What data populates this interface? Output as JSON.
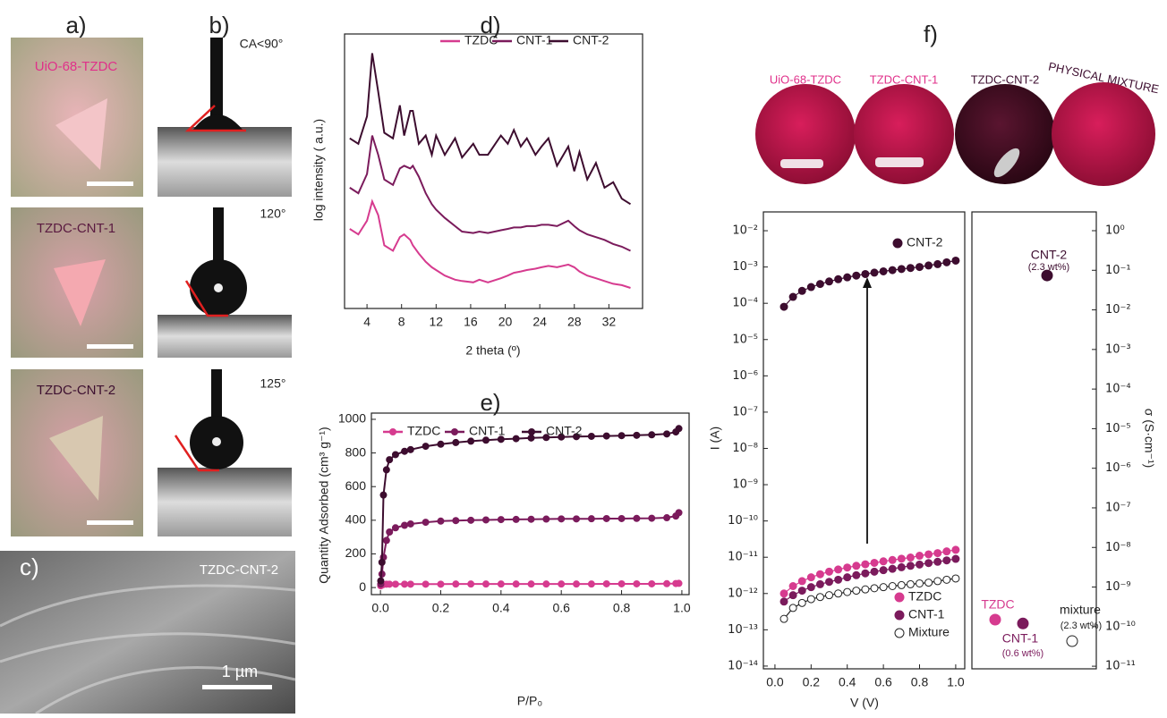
{
  "panels": {
    "a": "a)",
    "b": "b)",
    "c": "c)"
  },
  "photos": [
    "UiO-68-TZDC",
    "TZDC-CNT-1",
    "TZDC-CNT-2"
  ],
  "contact_angles": [
    "CA<90°",
    "120°",
    "125°"
  ],
  "sem": {
    "label": "TZDC-CNT-2",
    "scale": "1 µm"
  },
  "discs": [
    "UiO-68-TZDC",
    "TZDC-CNT-1",
    "TZDC-CNT-2",
    "PHYSICAL MIXTURE"
  ],
  "chart_data": [
    {
      "type": "line",
      "title": "d)",
      "x_label": "2 theta (º)",
      "y_label": "log intensity ( a.u.)",
      "xlim": [
        1.4,
        35.9
      ],
      "xticks": [
        4,
        8,
        12,
        16,
        20,
        24,
        28,
        32
      ],
      "ylim": [
        0,
        10
      ],
      "markers": false,
      "x": [
        2,
        3,
        4,
        4.6,
        5.3,
        6,
        7,
        7.8,
        8.3,
        9,
        9.3,
        10,
        10.8,
        11.5,
        12,
        13,
        14.2,
        15,
        16.3,
        17,
        18,
        19.5,
        20.3,
        21,
        21.8,
        22.5,
        23.5,
        24.2,
        25,
        26,
        27.3,
        28,
        28.6,
        29.5,
        30.5,
        31.5,
        32.5,
        33.5,
        34.5
      ],
      "series": [
        {
          "name": "TZDC",
          "color": "#d63b8f",
          "values": [
            2.9,
            2.7,
            3.2,
            3.9,
            3.4,
            2.3,
            2.1,
            2.6,
            2.7,
            2.5,
            2.3,
            2.0,
            1.7,
            1.5,
            1.4,
            1.2,
            1.05,
            1.0,
            0.95,
            1.05,
            0.95,
            1.1,
            1.2,
            1.3,
            1.35,
            1.4,
            1.45,
            1.5,
            1.55,
            1.5,
            1.6,
            1.5,
            1.35,
            1.2,
            1.1,
            1.0,
            0.9,
            0.85,
            0.75
          ]
        },
        {
          "name": "CNT-1",
          "color": "#7b1b5c",
          "values": [
            4.4,
            4.2,
            4.9,
            6.3,
            5.6,
            4.7,
            4.5,
            5.1,
            5.2,
            5.1,
            5.2,
            4.8,
            4.2,
            3.8,
            3.6,
            3.3,
            3.0,
            2.8,
            2.75,
            2.8,
            2.75,
            2.85,
            2.9,
            2.95,
            2.95,
            3.0,
            3.0,
            3.05,
            3.05,
            3.0,
            3.2,
            3.0,
            2.85,
            2.7,
            2.6,
            2.5,
            2.35,
            2.25,
            2.1
          ]
        },
        {
          "name": "CNT-2",
          "color": "#3d0d2f",
          "values": [
            6.2,
            6.0,
            7.0,
            9.3,
            7.9,
            6.4,
            6.2,
            7.4,
            6.3,
            7.2,
            7.2,
            6.0,
            6.3,
            5.6,
            6.3,
            5.6,
            6.2,
            5.5,
            6.0,
            5.6,
            5.6,
            6.3,
            6.0,
            6.5,
            5.9,
            6.2,
            5.6,
            5.9,
            6.2,
            5.2,
            5.9,
            5.0,
            5.7,
            4.7,
            5.3,
            4.4,
            4.6,
            4.0,
            3.8
          ]
        }
      ]
    },
    {
      "type": "line",
      "title": "e)",
      "x_label": "P/P₀",
      "y_label": "Quantity Adsorbed (cm³ g⁻¹)",
      "xlim": [
        -0.03,
        1.024
      ],
      "xticks": [
        {
          "value": 0,
          "label": "0.0"
        },
        {
          "value": 0.2,
          "label": "0.2"
        },
        {
          "value": 0.4,
          "label": "0.4"
        },
        {
          "value": 0.6,
          "label": "0.6"
        },
        {
          "value": 0.8,
          "label": "0.8"
        },
        {
          "value": 1,
          "label": "1.0"
        }
      ],
      "ylim": [
        -42,
        1037
      ],
      "yticks": [
        0,
        200,
        400,
        600,
        800,
        1000
      ],
      "markers": true,
      "x": [
        0.001,
        0.005,
        0.01,
        0.02,
        0.03,
        0.05,
        0.08,
        0.1,
        0.15,
        0.2,
        0.25,
        0.3,
        0.35,
        0.4,
        0.45,
        0.5,
        0.55,
        0.6,
        0.65,
        0.7,
        0.75,
        0.8,
        0.85,
        0.9,
        0.95,
        0.98,
        0.99
      ],
      "series": [
        {
          "name": "TZDC",
          "color": "#d63b8f",
          "values": [
            10,
            15,
            18,
            20,
            20,
            20,
            20,
            20,
            20,
            20,
            21,
            21,
            21,
            21,
            21,
            21,
            21,
            21,
            21,
            21,
            22,
            22,
            22,
            22,
            23,
            24,
            25
          ]
        },
        {
          "name": "CNT-1",
          "color": "#7b1b5c",
          "values": [
            20,
            80,
            180,
            280,
            330,
            355,
            370,
            378,
            388,
            395,
            398,
            400,
            402,
            404,
            405,
            406,
            407,
            408,
            408,
            409,
            410,
            410,
            411,
            412,
            415,
            425,
            445
          ]
        },
        {
          "name": "CNT-2",
          "color": "#3d0d2f",
          "values": [
            40,
            150,
            550,
            700,
            760,
            790,
            810,
            820,
            840,
            852,
            862,
            870,
            876,
            881,
            885,
            889,
            892,
            895,
            897,
            899,
            901,
            903,
            905,
            908,
            913,
            925,
            945
          ]
        }
      ]
    },
    {
      "type": "line",
      "title": "f)",
      "x_label": "V (V)",
      "y_label": "I (A)",
      "log_y": true,
      "xlim": [
        -0.064,
        1.05
      ],
      "xticks": [
        {
          "value": 0,
          "label": "0.0"
        },
        {
          "value": 0.2,
          "label": "0.2"
        },
        {
          "value": 0.4,
          "label": "0.4"
        },
        {
          "value": 0.6,
          "label": "0.6"
        },
        {
          "value": 0.8,
          "label": "0.8"
        },
        {
          "value": 1,
          "label": "1.0"
        }
      ],
      "ylim": [
        8.4e-15,
        0.033
      ],
      "yticks": [
        {
          "value": 1e-14,
          "label": "10⁻¹⁴"
        },
        {
          "value": 1e-13,
          "label": "10⁻¹³"
        },
        {
          "value": 1e-12,
          "label": "10⁻¹²"
        },
        {
          "value": 1e-11,
          "label": "10⁻¹¹"
        },
        {
          "value": 1e-10,
          "label": "10⁻¹⁰"
        },
        {
          "value": 1e-09,
          "label": "10⁻⁹"
        },
        {
          "value": 1e-08,
          "label": "10⁻⁸"
        },
        {
          "value": 1e-07,
          "label": "10⁻⁷"
        },
        {
          "value": 1e-06,
          "label": "10⁻⁶"
        },
        {
          "value": 1e-05,
          "label": "10⁻⁵"
        },
        {
          "value": 0.0001,
          "label": "10⁻⁴"
        },
        {
          "value": 0.001,
          "label": "10⁻³"
        },
        {
          "value": 0.01,
          "label": "10⁻²"
        }
      ],
      "markers": true,
      "x": [
        0.05,
        0.1,
        0.15,
        0.2,
        0.25,
        0.3,
        0.35,
        0.4,
        0.45,
        0.5,
        0.55,
        0.6,
        0.65,
        0.7,
        0.75,
        0.8,
        0.85,
        0.9,
        0.95,
        1.0
      ],
      "series": [
        {
          "name": "CNT-2",
          "color": "#3d0d2f",
          "values": [
            8e-05,
            0.00015,
            0.00022,
            0.00028,
            0.00034,
            0.0004,
            0.00046,
            0.00052,
            0.00058,
            0.00064,
            0.0007,
            0.00076,
            0.00082,
            0.00088,
            0.00094,
            0.001,
            0.0011,
            0.0012,
            0.00135,
            0.0015
          ]
        },
        {
          "name": "TZDC",
          "color": "#d63b8f",
          "values": [
            1e-12,
            1.6e-12,
            2.2e-12,
            2.8e-12,
            3.4e-12,
            4e-12,
            4.6e-12,
            5.2e-12,
            5.8e-12,
            6.4e-12,
            7e-12,
            7.7e-12,
            8.4e-12,
            9.1e-12,
            9.8e-12,
            1.1e-11,
            1.2e-11,
            1.3e-11,
            1.45e-11,
            1.6e-11
          ]
        },
        {
          "name": "CNT-1",
          "color": "#7b1b5c",
          "values": [
            6e-13,
            9e-13,
            1.2e-12,
            1.5e-12,
            1.8e-12,
            2.1e-12,
            2.4e-12,
            2.8e-12,
            3.2e-12,
            3.6e-12,
            4e-12,
            4.4e-12,
            4.8e-12,
            5.3e-12,
            5.8e-12,
            6.3e-12,
            6.9e-12,
            7.5e-12,
            8.2e-12,
            9e-12
          ]
        },
        {
          "name": "Mixture",
          "color": "#ffffff",
          "marker": "open",
          "values": [
            2e-13,
            4e-13,
            5.5e-13,
            7e-13,
            8e-13,
            9e-13,
            1e-12,
            1.1e-12,
            1.2e-12,
            1.3e-12,
            1.4e-12,
            1.5e-12,
            1.6e-12,
            1.7e-12,
            1.8e-12,
            1.9e-12,
            2e-12,
            2.2e-12,
            2.4e-12,
            2.6e-12
          ]
        }
      ]
    },
    {
      "type": "scatter",
      "y_label": "σ (S·cm⁻¹)",
      "log_y": true,
      "ylim": [
        8.6e-12,
        2.98
      ],
      "yticks": [
        {
          "value": 1,
          "label": "10⁰"
        },
        {
          "value": 0.1,
          "label": "10⁻¹"
        },
        {
          "value": 0.01,
          "label": "10⁻²"
        },
        {
          "value": 0.001,
          "label": "10⁻³"
        },
        {
          "value": 0.0001,
          "label": "10⁻⁴"
        },
        {
          "value": 1e-05,
          "label": "10⁻⁵"
        },
        {
          "value": 1e-06,
          "label": "10⁻⁶"
        },
        {
          "value": 1e-07,
          "label": "10⁻⁷"
        },
        {
          "value": 1e-08,
          "label": "10⁻⁸"
        },
        {
          "value": 1e-09,
          "label": "10⁻⁹"
        },
        {
          "value": 1e-10,
          "label": "10⁻¹⁰"
        },
        {
          "value": 1e-11,
          "label": "10⁻¹¹"
        }
      ],
      "points": [
        {
          "label": "TZDC",
          "value": 1.5e-10,
          "color": "#d63b8f"
        },
        {
          "label": "CNT-1",
          "note": "(0.6 wt%)",
          "value": 1.2e-10,
          "color": "#7b1b5c"
        },
        {
          "label": "CNT-2",
          "note": "(2.3 wt%)",
          "value": 0.074,
          "color": "#3d0d2f"
        },
        {
          "label": "mixture",
          "note": "(2.3 wt%)",
          "value": 4.3e-11,
          "color": "#ffffff",
          "marker": "open"
        }
      ]
    }
  ]
}
